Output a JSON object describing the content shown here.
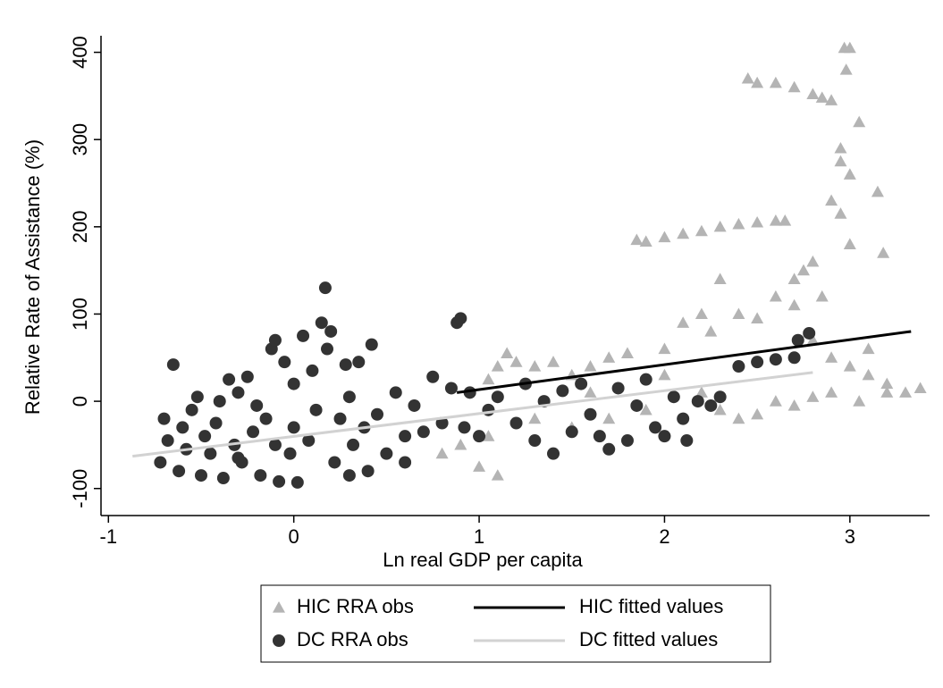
{
  "chart_data": {
    "type": "scatter",
    "xlabel": "Ln real GDP per capita",
    "ylabel": "Relative Rate of Assistance (%)",
    "xlim": [
      -1.04,
      3.43
    ],
    "ylim": [
      -131,
      419
    ],
    "xticks": [
      -1,
      0,
      1,
      2,
      3
    ],
    "yticks": [
      -100,
      0,
      100,
      200,
      300,
      400
    ],
    "grid": false,
    "legend": "bottom",
    "series": [
      {
        "name": "HIC RRA obs",
        "type": "scatter",
        "marker": "triangle",
        "color": "#b4b4b4",
        "x": [
          0.8,
          0.9,
          1.0,
          1.05,
          1.1,
          1.05,
          1.1,
          1.15,
          1.2,
          1.3,
          1.4,
          1.5,
          1.6,
          1.7,
          1.8,
          1.85,
          1.9,
          2.0,
          2.1,
          2.2,
          2.3,
          2.4,
          2.5,
          2.6,
          2.65,
          2.45,
          2.5,
          2.6,
          2.7,
          2.8,
          2.85,
          2.9,
          2.97,
          3.0,
          2.98,
          3.05,
          2.95,
          3.0,
          3.15,
          3.18,
          2.9,
          2.95,
          3.0,
          2.8,
          2.7,
          2.6,
          2.3,
          2.25,
          2.0,
          2.1,
          2.2,
          2.4,
          2.5,
          2.7,
          2.8,
          2.9,
          3.0,
          3.1,
          3.2,
          3.3,
          3.38,
          2.4,
          2.5,
          2.6,
          2.7,
          2.8,
          2.9,
          3.05,
          2.2,
          1.9,
          1.7,
          1.5,
          1.3,
          1.6,
          2.3,
          2.0,
          2.85,
          2.75,
          3.1,
          3.2,
          2.95
        ],
        "values": [
          -60,
          -50,
          -75,
          -40,
          -85,
          25,
          40,
          55,
          45,
          40,
          45,
          30,
          40,
          50,
          55,
          185,
          183,
          188,
          192,
          195,
          200,
          203,
          205,
          207,
          207,
          370,
          365,
          365,
          360,
          352,
          348,
          345,
          405,
          405,
          380,
          320,
          275,
          260,
          240,
          170,
          230,
          215,
          180,
          160,
          140,
          120,
          140,
          80,
          60,
          90,
          100,
          100,
          95,
          110,
          70,
          50,
          40,
          30,
          10,
          10,
          15,
          -20,
          -15,
          0,
          -5,
          5,
          10,
          0,
          10,
          -10,
          -20,
          -30,
          -20,
          10,
          -10,
          30,
          120,
          150,
          60,
          20,
          290
        ]
      },
      {
        "name": "DC RRA obs",
        "type": "scatter",
        "marker": "circle",
        "color": "#333333",
        "x": [
          -0.72,
          -0.7,
          -0.68,
          -0.65,
          -0.62,
          -0.6,
          -0.58,
          -0.55,
          -0.52,
          -0.5,
          -0.48,
          -0.45,
          -0.42,
          -0.4,
          -0.38,
          -0.35,
          -0.32,
          -0.3,
          -0.28,
          -0.25,
          -0.22,
          -0.2,
          -0.18,
          -0.15,
          -0.12,
          -0.1,
          -0.08,
          -0.05,
          -0.02,
          0,
          0.02,
          0.05,
          0.08,
          0.1,
          0.12,
          0.15,
          0.17,
          0.18,
          0.2,
          0.22,
          0.25,
          0.28,
          0.3,
          0.32,
          0.35,
          0.38,
          0.42,
          0.45,
          0.5,
          0.55,
          0.6,
          0.65,
          0.7,
          0.75,
          0.8,
          0.85,
          0.88,
          0.9,
          0.92,
          0.95,
          1.0,
          1.05,
          1.1,
          1.2,
          1.25,
          1.3,
          1.35,
          1.4,
          1.45,
          1.5,
          1.55,
          1.6,
          1.65,
          1.7,
          1.75,
          1.8,
          1.85,
          1.9,
          1.95,
          2.0,
          2.05,
          2.1,
          2.12,
          2.18,
          2.25,
          2.3,
          2.4,
          2.5,
          2.6,
          2.7,
          2.72,
          2.78,
          0.4,
          -0.1,
          0.6,
          0.0,
          0.3,
          -0.3
        ],
        "values": [
          -70,
          -20,
          -45,
          42,
          -80,
          -30,
          -55,
          -10,
          5,
          -85,
          -40,
          -60,
          -25,
          0,
          -88,
          25,
          -50,
          10,
          -70,
          28,
          -35,
          -5,
          -85,
          -20,
          60,
          70,
          -92,
          45,
          -60,
          -30,
          -93,
          75,
          -45,
          35,
          -10,
          90,
          130,
          60,
          80,
          -70,
          -20,
          42,
          5,
          -50,
          45,
          -30,
          65,
          -15,
          -60,
          10,
          -40,
          -5,
          -35,
          28,
          -25,
          15,
          90,
          95,
          -30,
          10,
          -40,
          -10,
          5,
          -25,
          20,
          -45,
          0,
          -60,
          12,
          -35,
          20,
          -15,
          -40,
          -55,
          15,
          -45,
          -5,
          25,
          -30,
          -40,
          5,
          -20,
          -45,
          0,
          -5,
          5,
          40,
          45,
          48,
          50,
          70,
          78,
          -80,
          -50,
          -70,
          20,
          -85,
          -65
        ]
      },
      {
        "name": "HIC fitted values",
        "type": "line",
        "color": "#000000",
        "x": [
          0.88,
          3.33
        ],
        "values": [
          10,
          80
        ]
      },
      {
        "name": "DC fitted values",
        "type": "line",
        "color": "#d2d2d2",
        "x": [
          -0.87,
          2.8
        ],
        "values": [
          -63,
          33
        ]
      }
    ]
  }
}
